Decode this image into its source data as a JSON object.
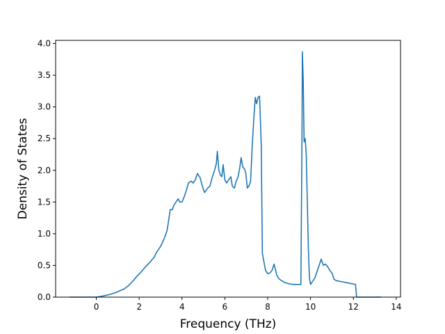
{
  "colors": {
    "line": "#1f77b4",
    "axes": "#000000",
    "background": "#ffffff"
  },
  "chart_data": {
    "type": "line",
    "xlabel": "Frequency (THz)",
    "ylabel": "Density of States",
    "xlim": [
      -1.9,
      14.2
    ],
    "ylim": [
      0.0,
      4.05
    ],
    "xticks": [
      0,
      2,
      4,
      6,
      8,
      10,
      12,
      14
    ],
    "yticks": [
      0.0,
      0.5,
      1.0,
      1.5,
      2.0,
      2.5,
      3.0,
      3.5,
      4.0
    ],
    "xtick_labels": [
      "0",
      "2",
      "4",
      "6",
      "8",
      "10",
      "12",
      "14"
    ],
    "ytick_labels": [
      "0.0",
      "0.5",
      "1.0",
      "1.5",
      "2.0",
      "2.5",
      "3.0",
      "3.5",
      "4.0"
    ],
    "grid": false,
    "series": [
      {
        "x": [
          -1.25,
          -0.6,
          0.0,
          0.35,
          0.6,
          0.9,
          1.1,
          1.3,
          1.5,
          1.7,
          1.9,
          2.1,
          2.3,
          2.5,
          2.7,
          2.8,
          3.0,
          3.1,
          3.2,
          3.3,
          3.35,
          3.45,
          3.55,
          3.62,
          3.72,
          3.82,
          3.9,
          4.0,
          4.1,
          4.2,
          4.3,
          4.42,
          4.52,
          4.62,
          4.72,
          4.85,
          4.95,
          5.05,
          5.2,
          5.3,
          5.42,
          5.52,
          5.6,
          5.65,
          5.72,
          5.8,
          5.86,
          5.92,
          6.0,
          6.08,
          6.18,
          6.28,
          6.35,
          6.45,
          6.52,
          6.62,
          6.7,
          6.76,
          6.84,
          6.92,
          6.98,
          7.05,
          7.12,
          7.2,
          7.28,
          7.35,
          7.42,
          7.48,
          7.55,
          7.62,
          7.7,
          7.75,
          7.8,
          7.9,
          8.0,
          8.1,
          8.2,
          8.3,
          8.42,
          8.5,
          8.6,
          8.8,
          9.0,
          9.2,
          9.4,
          9.55,
          9.6,
          9.62,
          9.66,
          9.7,
          9.75,
          9.8,
          9.85,
          9.9,
          9.95,
          10.0,
          10.1,
          10.2,
          10.3,
          10.4,
          10.5,
          10.55,
          10.6,
          10.7,
          10.8,
          10.9,
          11.0,
          11.1,
          11.2,
          11.5,
          11.8,
          12.1,
          12.15,
          12.2,
          12.6,
          13.3
        ],
        "values": [
          0.0,
          0.0,
          0.0,
          0.02,
          0.04,
          0.07,
          0.1,
          0.13,
          0.18,
          0.25,
          0.33,
          0.4,
          0.48,
          0.55,
          0.63,
          0.7,
          0.8,
          0.87,
          0.95,
          1.05,
          1.15,
          1.38,
          1.38,
          1.45,
          1.5,
          1.55,
          1.5,
          1.5,
          1.58,
          1.68,
          1.8,
          1.83,
          1.8,
          1.85,
          1.95,
          1.88,
          1.75,
          1.65,
          1.72,
          1.75,
          1.9,
          2.0,
          2.1,
          2.3,
          2.0,
          1.92,
          1.9,
          2.09,
          1.85,
          1.8,
          1.85,
          1.9,
          1.75,
          1.72,
          1.82,
          1.9,
          2.05,
          2.2,
          2.05,
          2.02,
          1.95,
          1.72,
          1.75,
          1.82,
          2.4,
          2.8,
          3.15,
          3.05,
          3.15,
          3.17,
          2.4,
          0.7,
          0.6,
          0.42,
          0.37,
          0.38,
          0.42,
          0.52,
          0.35,
          0.3,
          0.27,
          0.23,
          0.21,
          0.2,
          0.2,
          0.2,
          2.5,
          3.87,
          3.4,
          2.45,
          2.5,
          2.25,
          1.5,
          0.75,
          0.3,
          0.2,
          0.25,
          0.3,
          0.4,
          0.5,
          0.6,
          0.55,
          0.5,
          0.52,
          0.48,
          0.42,
          0.38,
          0.28,
          0.26,
          0.24,
          0.22,
          0.2,
          0.0,
          0.0,
          0.0,
          0.0
        ]
      }
    ]
  }
}
